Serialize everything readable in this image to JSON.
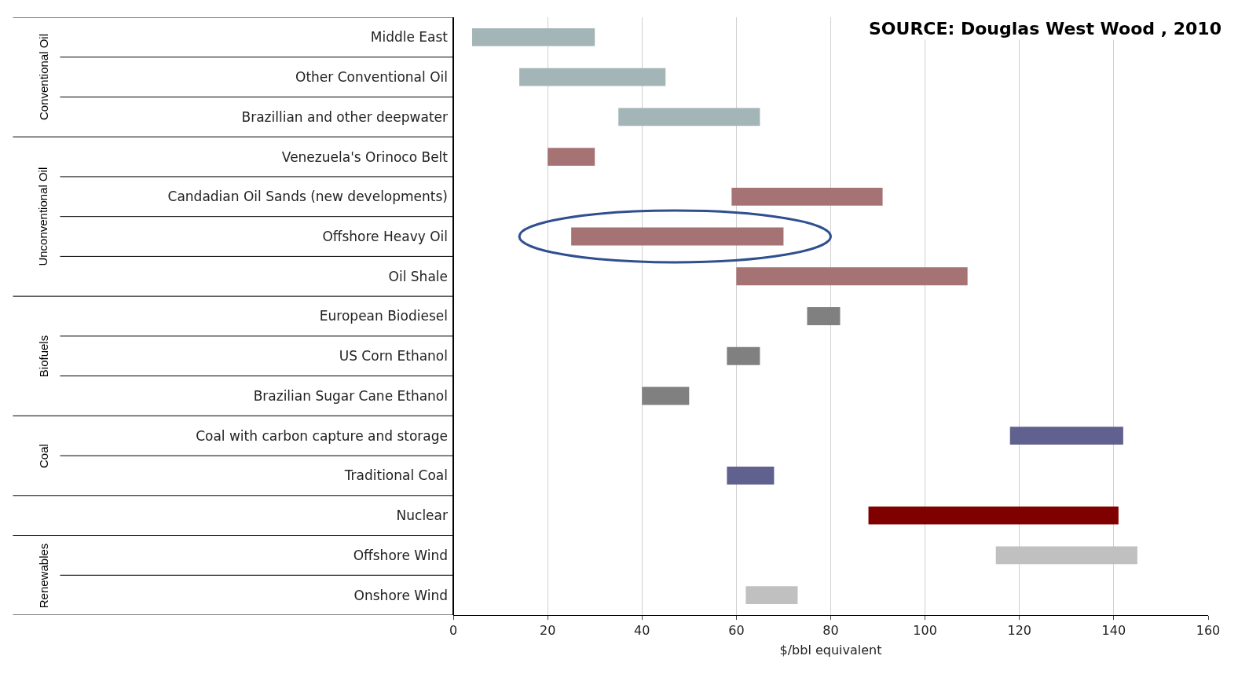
{
  "chart_data": {
    "type": "bar",
    "orientation": "horizontal",
    "xlabel": "$/bbl equivalent",
    "categories": [
      "Middle East",
      "Other Conventional Oil",
      "Brazillian and other deepwater",
      "Venezuela's Orinoco Belt",
      "Candadian Oil Sands (new developments)",
      "Offshore Heavy Oil",
      "Oil Shale",
      "European Biodiesel",
      "US Corn Ethanol",
      "Brazilian Sugar Cane Ethanol",
      "Coal with carbon capture and storage",
      "Traditional Coal",
      "Nuclear",
      "Offshore Wind",
      "Onshore Wind"
    ],
    "base": [
      4,
      14,
      35,
      20,
      59,
      25,
      60,
      75,
      58,
      40,
      118,
      58,
      88,
      115,
      62
    ],
    "values": [
      26,
      31,
      30,
      10,
      32,
      45,
      49,
      7,
      7,
      10,
      24,
      10,
      53,
      30,
      11
    ],
    "colors": [
      "#a4b5b7",
      "#a4b5b7",
      "#a4b5b7",
      "#a67374",
      "#a67374",
      "#a67374",
      "#a67374",
      "#808080",
      "#808080",
      "#808080",
      "#61618f",
      "#61618f",
      "#800000",
      "#c0c0c0",
      "#c0c0c0"
    ],
    "xlim": [
      0,
      160
    ],
    "xticks": [
      0,
      20,
      40,
      60,
      80,
      100,
      120,
      140,
      160
    ],
    "grid": "x",
    "annotations": [
      "SOURCE: Douglas West Wood , 2010",
      "Conventional Oil",
      "Unconventional Oil",
      "Biofuels",
      "Coal",
      "Renewables"
    ]
  }
}
